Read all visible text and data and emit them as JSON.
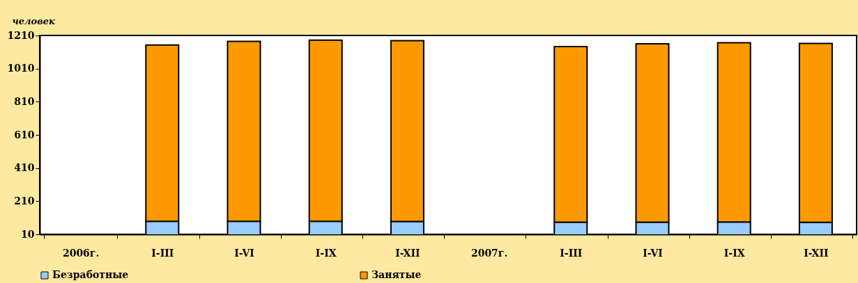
{
  "chart_data": {
    "type": "bar",
    "ylabel": "человек",
    "stacked": true,
    "categories": [
      "2006г.",
      "I-III",
      "I-VI",
      "I-IX",
      "I-XII",
      "2007г.",
      "I-III",
      "I-VI",
      "I-IX",
      "I-XII"
    ],
    "series": [
      {
        "name": "Безработные",
        "color": "#99ccff",
        "values": [
          null,
          89,
          89,
          89,
          88,
          null,
          83,
          83,
          84,
          82
        ]
      },
      {
        "name": "Занятые",
        "color": "#ff9900",
        "values": [
          null,
          1063,
          1085,
          1093,
          1091,
          null,
          1060,
          1077,
          1082,
          1080
        ]
      }
    ],
    "ylim": [
      10,
      1210
    ],
    "yticks": [
      10,
      210,
      410,
      610,
      810,
      1010,
      1210
    ],
    "grid": false,
    "legend": "bottom"
  }
}
